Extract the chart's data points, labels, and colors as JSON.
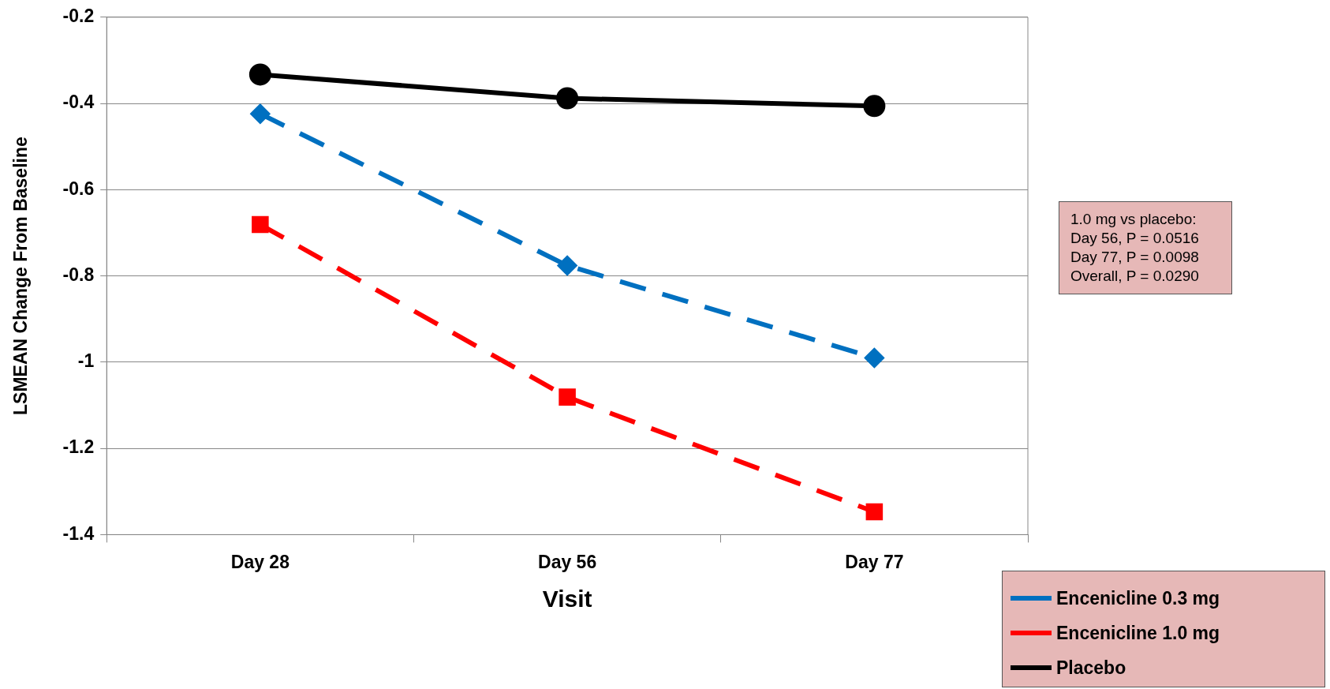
{
  "chart_data": {
    "type": "line",
    "xlabel": "Visit",
    "ylabel": "LSMEAN Change From Baseline",
    "categories": [
      "Day 28",
      "Day 56",
      "Day 77"
    ],
    "series": [
      {
        "name": "Encenicline 0.3 mg",
        "color": "#0070c0",
        "values": [
          -0.424,
          -0.776,
          -0.99
        ],
        "marker": "diamond",
        "line_style": "dashed"
      },
      {
        "name": "Encenicline 1.0 mg",
        "color": "#ff0000",
        "values": [
          -0.681,
          -1.081,
          -1.347
        ],
        "marker": "square",
        "line_style": "dashed"
      },
      {
        "name": "Placebo",
        "color": "#000000",
        "values": [
          -0.333,
          -0.388,
          -0.406
        ],
        "marker": "circle",
        "line_style": "solid"
      }
    ],
    "ylim": [
      -1.4,
      -0.2
    ],
    "yticks": [
      -1.4,
      -1.2,
      -1,
      -0.8,
      -0.6,
      -0.4,
      -0.2
    ],
    "grid": "y",
    "legend": "bottom right",
    "annotations": [
      "1.0 mg vs placebo:",
      "Day 56, P = 0.0516",
      "Day 77, P = 0.0098",
      "Overall, P = 0.0290"
    ]
  }
}
